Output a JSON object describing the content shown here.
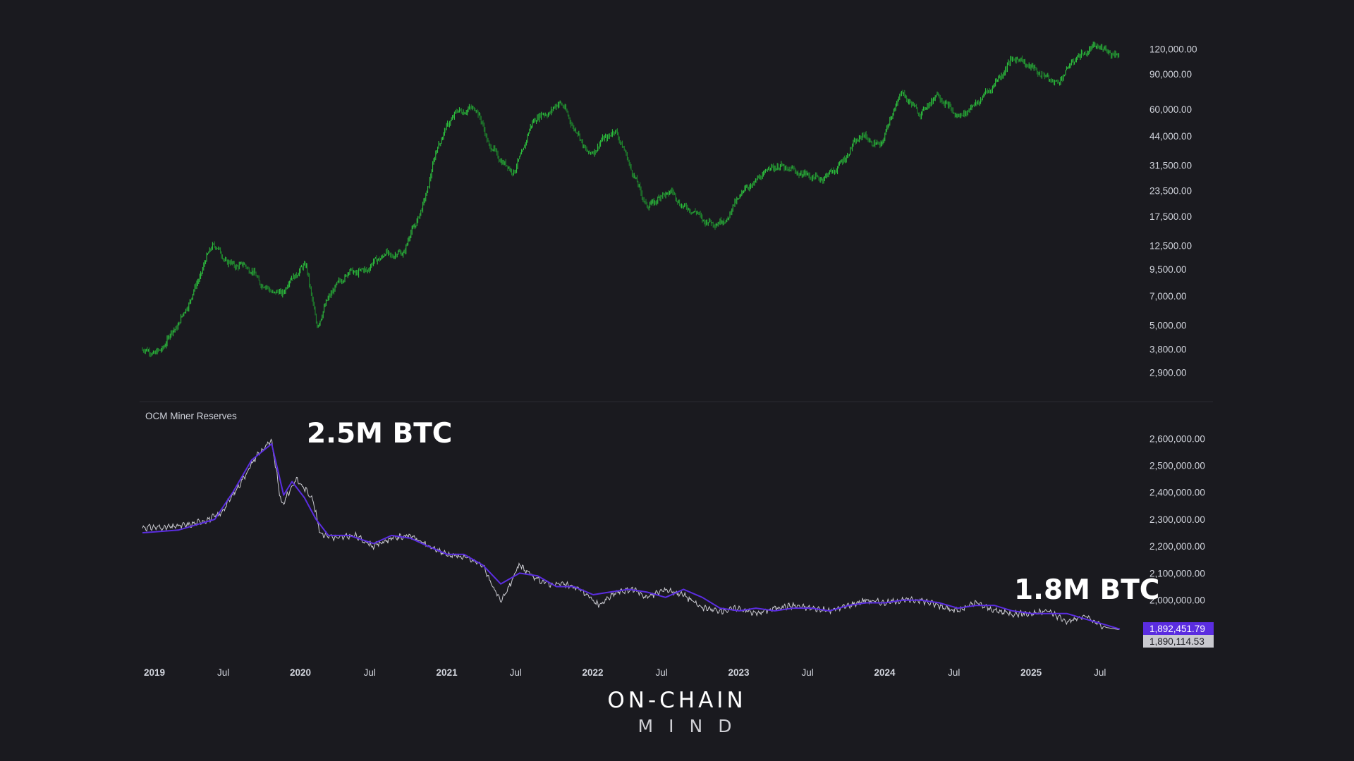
{
  "colors": {
    "background": "#1a1a1f",
    "candle": "#2ecc40",
    "reserves_line": "#c9c9cf",
    "reserves_ma": "#5b2de0",
    "badge_ma_bg": "#5b2de0",
    "badge_value_bg": "#c9c9cf",
    "divider": "#2a2a31"
  },
  "annotations": {
    "peak": "2.5M BTC",
    "current": "1.8M BTC"
  },
  "brand": {
    "line1": "ON-CHAIN",
    "line2": "MIND"
  },
  "chart_data": [
    {
      "type": "line",
      "series_kind": "candlestick",
      "scale": "log",
      "y_tick_labels": [
        "120,000.00",
        "90,000.00",
        "60,000.00",
        "44,000.00",
        "31,500.00",
        "23,500.00",
        "17,500.00",
        "12,500.00",
        "9,500.00",
        "7,000.00",
        "5,000.00",
        "3,800.00",
        "2,900.00"
      ],
      "y_ticks": [
        120000,
        90000,
        60000,
        44000,
        31500,
        23500,
        17500,
        12500,
        9500,
        7000,
        5000,
        3800,
        2900
      ],
      "ylim": [
        2400,
        165000
      ],
      "x": [
        "2019-01-01",
        "2019-02-15",
        "2019-04-01",
        "2019-05-15",
        "2019-06-26",
        "2019-08-01",
        "2019-09-15",
        "2019-10-26",
        "2019-12-15",
        "2020-02-15",
        "2020-03-12",
        "2020-04-15",
        "2020-06-01",
        "2020-07-15",
        "2020-09-01",
        "2020-10-15",
        "2020-11-30",
        "2021-01-08",
        "2021-02-20",
        "2021-04-14",
        "2021-05-19",
        "2021-06-22",
        "2021-07-20",
        "2021-09-06",
        "2021-10-20",
        "2021-11-10",
        "2021-12-15",
        "2022-01-22",
        "2022-03-01",
        "2022-04-01",
        "2022-05-10",
        "2022-06-18",
        "2022-08-15",
        "2022-09-15",
        "2022-11-09",
        "2022-12-31",
        "2023-02-15",
        "2023-04-14",
        "2023-06-15",
        "2023-08-20",
        "2023-10-23",
        "2023-12-05",
        "2024-01-20",
        "2024-03-14",
        "2024-05-01",
        "2024-06-10",
        "2024-08-05",
        "2024-09-20",
        "2024-11-12",
        "2024-12-17",
        "2025-02-10",
        "2025-04-07",
        "2025-05-22",
        "2025-07-14",
        "2025-08-14",
        "2025-09-10"
      ],
      "y": [
        3800,
        3700,
        5000,
        8000,
        12500,
        10500,
        9800,
        8000,
        7200,
        10200,
        5000,
        7000,
        9500,
        9300,
        11500,
        11500,
        18800,
        40000,
        56000,
        63000,
        38000,
        32000,
        30000,
        52000,
        60000,
        67000,
        47000,
        36000,
        43000,
        45000,
        30000,
        19000,
        24000,
        19500,
        16500,
        16600,
        24000,
        30000,
        30500,
        26000,
        34000,
        44000,
        40000,
        72000,
        58000,
        69000,
        56000,
        63000,
        88000,
        106000,
        97000,
        78000,
        111000,
        121000,
        117000,
        113000
      ]
    },
    {
      "type": "line",
      "title": "OCM Miner Reserves",
      "y_tick_labels": [
        "2,600,000.00",
        "2,500,000.00",
        "2,400,000.00",
        "2,300,000.00",
        "2,200,000.00",
        "2,100,000.00",
        "2,000,000.00"
      ],
      "y_ticks": [
        2600000,
        2500000,
        2400000,
        2300000,
        2200000,
        2100000,
        2000000
      ],
      "ylim": [
        1850000,
        2640000
      ],
      "x_tick_labels": [
        "2019",
        "Jul",
        "2020",
        "Jul",
        "2021",
        "Jul",
        "2022",
        "Jul",
        "2023",
        "Jul",
        "2024",
        "Jul",
        "2025",
        "Jul"
      ],
      "last_values": [
        "1,892,451.79",
        "1,890,114.53"
      ],
      "series": [
        {
          "kind": "raw",
          "x": [
            "2019-01-01",
            "2019-03-01",
            "2019-05-01",
            "2019-06-15",
            "2019-07-15",
            "2019-09-01",
            "2019-10-15",
            "2019-11-20",
            "2019-12-15",
            "2020-01-20",
            "2020-03-01",
            "2020-03-20",
            "2020-05-01",
            "2020-06-15",
            "2020-08-01",
            "2020-09-15",
            "2020-11-01",
            "2020-12-15",
            "2021-02-01",
            "2021-03-15",
            "2021-05-01",
            "2021-06-15",
            "2021-08-01",
            "2021-09-08",
            "2021-10-15",
            "2021-11-15",
            "2022-01-01",
            "2022-02-15",
            "2022-04-01",
            "2022-05-15",
            "2022-06-15",
            "2022-08-01",
            "2022-09-15",
            "2022-11-01",
            "2022-12-15",
            "2023-02-01",
            "2023-03-15",
            "2023-05-01",
            "2023-06-15",
            "2023-08-01",
            "2023-09-15",
            "2023-11-01",
            "2023-12-15",
            "2024-02-01",
            "2024-03-15",
            "2024-05-01",
            "2024-06-15",
            "2024-08-01",
            "2024-09-15",
            "2024-11-01",
            "2024-12-15",
            "2025-02-01",
            "2025-03-15",
            "2025-05-01",
            "2025-06-15",
            "2025-08-01",
            "2025-09-10"
          ],
          "y": [
            2270000,
            2270000,
            2280000,
            2300000,
            2320000,
            2430000,
            2540000,
            2590000,
            2350000,
            2450000,
            2380000,
            2250000,
            2230000,
            2240000,
            2200000,
            2230000,
            2240000,
            2200000,
            2170000,
            2160000,
            2130000,
            1990000,
            2130000,
            2080000,
            2060000,
            2060000,
            2040000,
            1980000,
            2030000,
            2040000,
            2010000,
            2040000,
            2020000,
            1970000,
            1960000,
            1970000,
            1950000,
            1970000,
            1980000,
            1970000,
            1960000,
            1980000,
            2000000,
            1990000,
            2000000,
            2000000,
            1980000,
            1960000,
            1990000,
            1960000,
            1950000,
            1950000,
            1960000,
            1920000,
            1940000,
            1900000,
            1890115
          ]
        },
        {
          "kind": "moving_average",
          "x": [
            "2019-01-01",
            "2019-04-01",
            "2019-07-01",
            "2019-08-15",
            "2019-10-01",
            "2019-11-20",
            "2019-12-20",
            "2020-01-10",
            "2020-02-10",
            "2020-03-10",
            "2020-04-10",
            "2020-06-01",
            "2020-08-01",
            "2020-09-15",
            "2020-11-01",
            "2020-12-15",
            "2021-02-01",
            "2021-03-15",
            "2021-05-01",
            "2021-06-15",
            "2021-08-01",
            "2021-09-15",
            "2021-11-01",
            "2021-12-15",
            "2022-02-01",
            "2022-03-15",
            "2022-05-01",
            "2022-06-15",
            "2022-08-01",
            "2022-09-15",
            "2022-11-01",
            "2022-12-15",
            "2023-02-01",
            "2023-03-15",
            "2023-05-01",
            "2023-06-15",
            "2023-08-01",
            "2023-09-15",
            "2023-11-01",
            "2023-12-15",
            "2024-02-01",
            "2024-03-15",
            "2024-05-01",
            "2024-06-15",
            "2024-08-01",
            "2024-09-15",
            "2024-11-01",
            "2024-12-15",
            "2025-02-01",
            "2025-03-15",
            "2025-05-01",
            "2025-06-15",
            "2025-08-01",
            "2025-09-10"
          ],
          "y": [
            2250000,
            2260000,
            2300000,
            2400000,
            2520000,
            2580000,
            2390000,
            2440000,
            2380000,
            2300000,
            2240000,
            2240000,
            2210000,
            2240000,
            2230000,
            2200000,
            2170000,
            2170000,
            2130000,
            2060000,
            2100000,
            2090000,
            2050000,
            2050000,
            2020000,
            2030000,
            2040000,
            2030000,
            2010000,
            2040000,
            2010000,
            1970000,
            1960000,
            1970000,
            1960000,
            1970000,
            1970000,
            1960000,
            1980000,
            1990000,
            1990000,
            2000000,
            2000000,
            1990000,
            1970000,
            1980000,
            1980000,
            1960000,
            1950000,
            1950000,
            1950000,
            1930000,
            1910000,
            1892452
          ]
        }
      ]
    }
  ]
}
